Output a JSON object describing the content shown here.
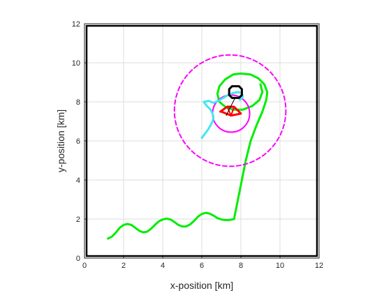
{
  "chart_data": {
    "type": "line",
    "title": "",
    "xlabel": "x-position [km]",
    "ylabel": "y-position [km]",
    "xlim": [
      0,
      12
    ],
    "ylim": [
      0,
      12
    ],
    "xticks": [
      "0",
      "2",
      "4",
      "6",
      "8",
      "10",
      "12"
    ],
    "yticks": [
      "0",
      "2",
      "4",
      "6",
      "8",
      "10",
      "12"
    ],
    "grid": true,
    "colors": {
      "green": "#00ee00",
      "magenta": "#ff00ff",
      "cyan": "#44e6f4",
      "red": "#ff0000",
      "black": "#000000"
    },
    "series": [
      {
        "style": "solid",
        "color": "green",
        "width": 3,
        "points": [
          [
            1.2,
            1.0
          ],
          [
            1.4,
            1.1
          ],
          [
            1.6,
            1.3
          ],
          [
            1.8,
            1.55
          ],
          [
            2.0,
            1.7
          ],
          [
            2.2,
            1.75
          ],
          [
            2.4,
            1.7
          ],
          [
            2.6,
            1.55
          ],
          [
            2.8,
            1.4
          ],
          [
            3.0,
            1.32
          ],
          [
            3.2,
            1.35
          ],
          [
            3.4,
            1.5
          ],
          [
            3.6,
            1.7
          ],
          [
            3.8,
            1.88
          ],
          [
            4.0,
            1.98
          ],
          [
            4.2,
            2.02
          ],
          [
            4.4,
            1.98
          ],
          [
            4.6,
            1.85
          ],
          [
            4.8,
            1.7
          ],
          [
            5.0,
            1.62
          ],
          [
            5.2,
            1.62
          ],
          [
            5.4,
            1.72
          ],
          [
            5.6,
            1.9
          ],
          [
            5.8,
            2.12
          ],
          [
            6.0,
            2.26
          ],
          [
            6.2,
            2.32
          ],
          [
            6.4,
            2.28
          ],
          [
            6.6,
            2.18
          ],
          [
            6.8,
            2.05
          ],
          [
            7.0,
            1.98
          ],
          [
            7.2,
            1.95
          ],
          [
            7.4,
            1.95
          ],
          [
            7.65,
            2.0
          ],
          [
            7.85,
            3.0
          ],
          [
            8.05,
            4.0
          ],
          [
            8.25,
            5.0
          ],
          [
            8.5,
            6.0
          ],
          [
            8.8,
            6.8
          ],
          [
            9.1,
            7.5
          ],
          [
            9.3,
            8.1
          ],
          [
            9.35,
            8.5
          ],
          [
            9.2,
            8.9
          ],
          [
            8.9,
            9.2
          ],
          [
            8.5,
            9.4
          ],
          [
            8.0,
            9.45
          ],
          [
            7.6,
            9.4
          ],
          [
            7.2,
            9.15
          ],
          [
            6.9,
            8.8
          ],
          [
            6.8,
            8.4
          ],
          [
            6.9,
            8.0
          ],
          [
            7.2,
            7.75
          ],
          [
            7.6,
            7.6
          ],
          [
            8.1,
            7.6
          ],
          [
            8.6,
            7.8
          ],
          [
            8.95,
            8.1
          ],
          [
            9.1,
            8.5
          ],
          [
            9.0,
            8.9
          ]
        ]
      },
      {
        "style": "dashed",
        "color": "magenta",
        "width": 2,
        "circle": {
          "cx": 7.45,
          "cy": 7.55,
          "r": 2.85
        }
      },
      {
        "style": "solid",
        "color": "magenta",
        "width": 2,
        "circle": {
          "cx": 7.5,
          "cy": 7.4,
          "r": 0.95
        }
      },
      {
        "style": "solid",
        "color": "cyan",
        "width": 3,
        "points": [
          [
            6.0,
            6.15
          ],
          [
            6.15,
            6.35
          ],
          [
            6.3,
            6.55
          ],
          [
            6.45,
            6.8
          ],
          [
            6.55,
            7.0
          ],
          [
            6.6,
            7.2
          ],
          [
            6.55,
            7.4
          ],
          [
            6.45,
            7.6
          ],
          [
            6.25,
            7.8
          ],
          [
            6.1,
            8.0
          ],
          [
            6.35,
            8.05
          ],
          [
            6.6,
            7.95
          ],
          [
            6.85,
            8.05
          ],
          [
            7.1,
            8.2
          ],
          [
            7.35,
            8.35
          ],
          [
            7.6,
            8.45
          ],
          [
            7.85,
            8.5
          ],
          [
            8.05,
            8.45
          ],
          [
            8.1,
            8.25
          ],
          [
            7.95,
            8.1
          ]
        ]
      },
      {
        "style": "solid",
        "color": "red",
        "width": 3,
        "points": [
          [
            6.95,
            7.5
          ],
          [
            7.3,
            7.75
          ],
          [
            7.65,
            7.75
          ],
          [
            8.0,
            7.4
          ],
          [
            7.5,
            7.3
          ],
          [
            7.0,
            7.5
          ],
          [
            6.95,
            7.5
          ]
        ]
      },
      {
        "style": "solid",
        "color": "red",
        "width": 2,
        "points": [
          [
            7.3,
            7.75
          ],
          [
            7.5,
            7.3
          ],
          [
            7.65,
            7.75
          ]
        ]
      },
      {
        "style": "solid",
        "color": "black",
        "width": 3,
        "points": [
          [
            7.55,
            8.8
          ],
          [
            7.9,
            8.8
          ],
          [
            8.05,
            8.65
          ],
          [
            8.05,
            8.35
          ],
          [
            7.9,
            8.2
          ],
          [
            7.55,
            8.2
          ],
          [
            7.4,
            8.35
          ],
          [
            7.4,
            8.65
          ],
          [
            7.55,
            8.8
          ]
        ]
      },
      {
        "style": "solid",
        "color": "black",
        "width": 1,
        "points": [
          [
            7.7,
            8.2
          ],
          [
            7.25,
            7.3
          ]
        ]
      }
    ]
  }
}
